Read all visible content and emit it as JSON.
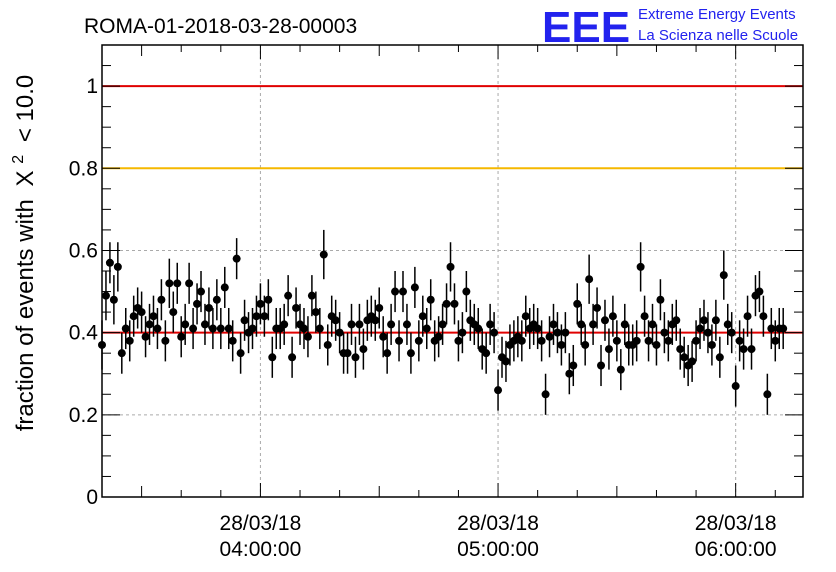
{
  "title": "ROMA-01-2018-03-28-00003",
  "logo": {
    "letters": "EEE",
    "line1": "Extreme Energy Events",
    "line2": "La Scienza nelle Scuole",
    "color": "#2222ee"
  },
  "chart_data": {
    "type": "scatter",
    "title": "ROMA-01-2018-03-28-00003",
    "ylabel_text": "fraction of events with",
    "ylabel_symbol": "X",
    "ylabel_sup": "2",
    "ylabel_tail": "< 10.0",
    "xlim": [
      "03:20:00",
      "06:17:00"
    ],
    "ylim": [
      0,
      1.1
    ],
    "grid": true,
    "y_ticks": [
      {
        "value": 0,
        "label": "0"
      },
      {
        "value": 0.2,
        "label": "0.2"
      },
      {
        "value": 0.4,
        "label": "0.4"
      },
      {
        "value": 0.6,
        "label": "0.6"
      },
      {
        "value": 0.8,
        "label": "0.8"
      },
      {
        "value": 1.0,
        "label": "1"
      }
    ],
    "x_ticks": [
      {
        "time": "04:00:00",
        "date": "28/03/18",
        "label": "04:00:00"
      },
      {
        "time": "05:00:00",
        "date": "28/03/18",
        "label": "05:00:00"
      },
      {
        "time": "06:00:00",
        "date": "28/03/18",
        "label": "06:00:00"
      }
    ],
    "reference_lines": [
      {
        "y": 1.0,
        "color": "#e00000"
      },
      {
        "y": 0.8,
        "color": "#f5b800"
      },
      {
        "y": 0.4,
        "color": "#e00000"
      }
    ],
    "marker_color": "#000000",
    "x_start": "03:20:00",
    "x_step_minutes": 1,
    "y": [
      0.37,
      0.49,
      0.57,
      0.48,
      0.56,
      0.35,
      0.41,
      0.38,
      0.44,
      0.46,
      0.45,
      0.39,
      0.42,
      0.44,
      0.41,
      0.48,
      0.38,
      0.52,
      0.45,
      0.52,
      0.39,
      0.42,
      0.52,
      0.41,
      0.47,
      0.5,
      0.42,
      0.46,
      0.41,
      0.48,
      0.41,
      0.51,
      0.41,
      0.38,
      0.58,
      0.35,
      0.43,
      0.4,
      0.41,
      0.44,
      0.47,
      0.44,
      0.48,
      0.34,
      0.41,
      0.41,
      0.42,
      0.49,
      0.34,
      0.46,
      0.42,
      0.41,
      0.39,
      0.49,
      0.45,
      0.41,
      0.59,
      0.37,
      0.44,
      0.43,
      0.4,
      0.35,
      0.35,
      0.42,
      0.34,
      0.42,
      0.36,
      0.43,
      0.44,
      0.43,
      0.46,
      0.39,
      0.35,
      0.42,
      0.5,
      0.38,
      0.5,
      0.42,
      0.35,
      0.51,
      0.38,
      0.44,
      0.41,
      0.48,
      0.38,
      0.39,
      0.42,
      0.47,
      0.56,
      0.47,
      0.38,
      0.4,
      0.5,
      0.43,
      0.42,
      0.41,
      0.36,
      0.35,
      0.42,
      0.4,
      0.26,
      0.34,
      0.33,
      0.37,
      0.38,
      0.39,
      0.38,
      0.44,
      0.41,
      0.42,
      0.41,
      0.38,
      0.25,
      0.39,
      0.42,
      0.4,
      0.37,
      0.4,
      0.3,
      0.32,
      0.47,
      0.42,
      0.37,
      0.53,
      0.42,
      0.46,
      0.32,
      0.43,
      0.36,
      0.44,
      0.38,
      0.31,
      0.42,
      0.37,
      0.37,
      0.38,
      0.56,
      0.44,
      0.38,
      0.42,
      0.37,
      0.48,
      0.4,
      0.38,
      0.42,
      0.43,
      0.36,
      0.34,
      0.32,
      0.33,
      0.38,
      0.41,
      0.43,
      0.4,
      0.37,
      0.43,
      0.34,
      0.54,
      0.42,
      0.4,
      0.27,
      0.38,
      0.36,
      0.44,
      0.36,
      0.49,
      0.5,
      0.44,
      0.25,
      0.41,
      0.38,
      0.41,
      0.41
    ],
    "err": [
      0.06,
      0.06,
      0.05,
      0.06,
      0.06,
      0.05,
      0.05,
      0.05,
      0.05,
      0.05,
      0.05,
      0.05,
      0.05,
      0.05,
      0.05,
      0.05,
      0.05,
      0.06,
      0.05,
      0.05,
      0.05,
      0.05,
      0.05,
      0.05,
      0.05,
      0.05,
      0.05,
      0.05,
      0.05,
      0.05,
      0.05,
      0.05,
      0.05,
      0.05,
      0.05,
      0.05,
      0.05,
      0.05,
      0.05,
      0.05,
      0.05,
      0.05,
      0.05,
      0.05,
      0.05,
      0.05,
      0.05,
      0.05,
      0.05,
      0.05,
      0.05,
      0.05,
      0.05,
      0.05,
      0.05,
      0.05,
      0.06,
      0.05,
      0.05,
      0.05,
      0.05,
      0.05,
      0.05,
      0.05,
      0.05,
      0.05,
      0.05,
      0.05,
      0.05,
      0.05,
      0.05,
      0.05,
      0.05,
      0.05,
      0.05,
      0.05,
      0.05,
      0.05,
      0.05,
      0.05,
      0.05,
      0.05,
      0.05,
      0.05,
      0.05,
      0.05,
      0.05,
      0.05,
      0.06,
      0.05,
      0.05,
      0.05,
      0.05,
      0.05,
      0.05,
      0.05,
      0.05,
      0.05,
      0.05,
      0.05,
      0.05,
      0.05,
      0.05,
      0.05,
      0.05,
      0.05,
      0.05,
      0.05,
      0.05,
      0.05,
      0.05,
      0.05,
      0.05,
      0.05,
      0.05,
      0.05,
      0.05,
      0.05,
      0.05,
      0.05,
      0.05,
      0.05,
      0.05,
      0.06,
      0.05,
      0.05,
      0.05,
      0.05,
      0.05,
      0.05,
      0.05,
      0.05,
      0.05,
      0.05,
      0.05,
      0.05,
      0.06,
      0.05,
      0.05,
      0.05,
      0.05,
      0.05,
      0.05,
      0.05,
      0.05,
      0.05,
      0.05,
      0.05,
      0.05,
      0.05,
      0.05,
      0.05,
      0.05,
      0.05,
      0.05,
      0.05,
      0.05,
      0.06,
      0.05,
      0.05,
      0.05,
      0.05,
      0.05,
      0.05,
      0.05,
      0.05,
      0.05,
      0.05,
      0.05,
      0.05,
      0.05,
      0.05,
      0.05
    ]
  }
}
